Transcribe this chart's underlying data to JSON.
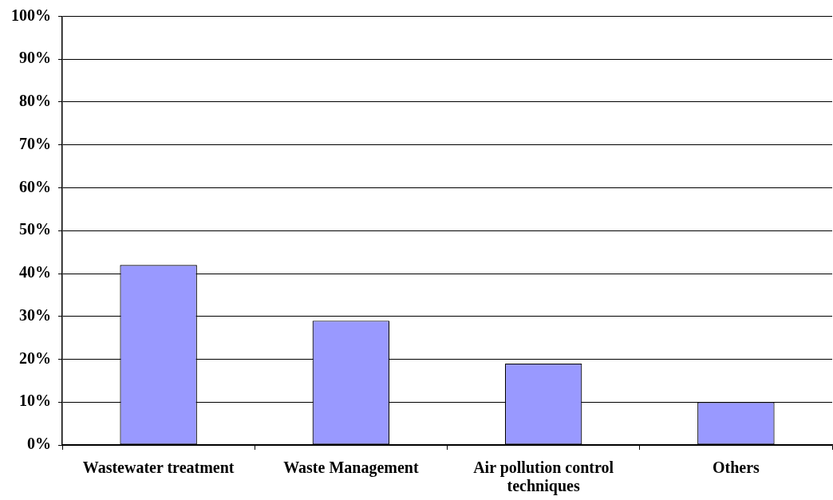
{
  "chart_data": {
    "type": "bar",
    "categories": [
      "Wastewater treatment",
      "Waste Management",
      "Air pollution control techniques",
      "Others"
    ],
    "values": [
      42,
      29,
      19,
      10
    ],
    "color": "#9999ff",
    "ylim": [
      0,
      100
    ],
    "yticks": [
      {
        "value": 0,
        "label": "0%"
      },
      {
        "value": 10,
        "label": "10%"
      },
      {
        "value": 20,
        "label": "20%"
      },
      {
        "value": 30,
        "label": "30%"
      },
      {
        "value": 40,
        "label": "40%"
      },
      {
        "value": 50,
        "label": "50%"
      },
      {
        "value": 60,
        "label": "60%"
      },
      {
        "value": 70,
        "label": "70%"
      },
      {
        "value": 80,
        "label": "80%"
      },
      {
        "value": 90,
        "label": "90%"
      },
      {
        "value": 100,
        "label": "100%"
      }
    ],
    "grid": "y"
  }
}
